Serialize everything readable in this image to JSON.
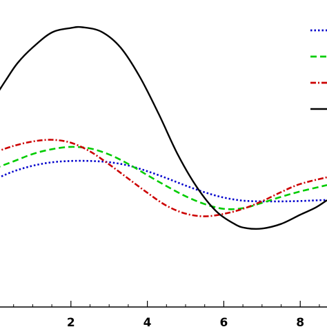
{
  "chart_data": {
    "type": "line",
    "title": "",
    "xlabel": "",
    "ylabel": "",
    "xlim": [
      0.0,
      8.7
    ],
    "ylim": [
      -1.0,
      1.0
    ],
    "xticks": [
      2,
      4,
      6,
      8
    ],
    "xtick_labels": [
      "2",
      "4",
      "6",
      "8"
    ],
    "grid": false,
    "legend": {
      "position": "top-right",
      "show_labels": false
    },
    "series": [
      {
        "color": "#0000cc",
        "dash": "dotted",
        "points": [
          [
            0.0,
            -0.212
          ],
          [
            0.5,
            -0.146
          ],
          [
            1.0,
            -0.1
          ],
          [
            1.5,
            -0.072
          ],
          [
            2.0,
            -0.061
          ],
          [
            2.5,
            -0.061
          ],
          [
            3.0,
            -0.071
          ],
          [
            3.5,
            -0.098
          ],
          [
            4.0,
            -0.145
          ],
          [
            4.5,
            -0.201
          ],
          [
            5.0,
            -0.262
          ],
          [
            5.5,
            -0.317
          ],
          [
            6.0,
            -0.36
          ],
          [
            6.5,
            -0.385
          ],
          [
            7.0,
            -0.391
          ],
          [
            7.5,
            -0.391
          ],
          [
            8.0,
            -0.388
          ],
          [
            8.7,
            -0.379
          ]
        ]
      },
      {
        "color": "#00cc00",
        "dash": "dashed",
        "points": [
          [
            0.0,
            -0.122
          ],
          [
            0.5,
            -0.064
          ],
          [
            1.0,
            -0.004
          ],
          [
            1.5,
            0.035
          ],
          [
            2.0,
            0.054
          ],
          [
            2.5,
            0.041
          ],
          [
            3.0,
            -0.008
          ],
          [
            3.5,
            -0.085
          ],
          [
            4.0,
            -0.177
          ],
          [
            4.5,
            -0.266
          ],
          [
            5.0,
            -0.349
          ],
          [
            5.5,
            -0.413
          ],
          [
            6.0,
            -0.452
          ],
          [
            6.5,
            -0.447
          ],
          [
            7.0,
            -0.403
          ],
          [
            7.5,
            -0.354
          ],
          [
            8.0,
            -0.31
          ],
          [
            8.7,
            -0.258
          ]
        ]
      },
      {
        "color": "#cc0000",
        "dash": "dashdot",
        "points": [
          [
            0.0,
            0.009
          ],
          [
            0.5,
            0.062
          ],
          [
            1.0,
            0.098
          ],
          [
            1.5,
            0.112
          ],
          [
            2.0,
            0.088
          ],
          [
            2.5,
            0.017
          ],
          [
            3.0,
            -0.089
          ],
          [
            3.5,
            -0.205
          ],
          [
            4.0,
            -0.321
          ],
          [
            4.5,
            -0.426
          ],
          [
            5.0,
            -0.491
          ],
          [
            5.5,
            -0.513
          ],
          [
            6.0,
            -0.493
          ],
          [
            6.5,
            -0.452
          ],
          [
            7.0,
            -0.39
          ],
          [
            7.5,
            -0.315
          ],
          [
            8.0,
            -0.249
          ],
          [
            8.7,
            -0.194
          ]
        ]
      },
      {
        "color": "#000000",
        "dash": "solid",
        "points": [
          [
            0.0,
            0.455
          ],
          [
            0.3,
            0.6
          ],
          [
            0.6,
            0.737
          ],
          [
            1.0,
            0.866
          ],
          [
            1.5,
            0.988
          ],
          [
            2.0,
            1.025
          ],
          [
            2.3,
            1.031
          ],
          [
            2.8,
            0.994
          ],
          [
            3.3,
            0.865
          ],
          [
            3.8,
            0.627
          ],
          [
            4.3,
            0.321
          ],
          [
            4.8,
            -0.011
          ],
          [
            5.3,
            -0.277
          ],
          [
            5.8,
            -0.471
          ],
          [
            6.3,
            -0.579
          ],
          [
            6.6,
            -0.61
          ],
          [
            7.0,
            -0.613
          ],
          [
            7.5,
            -0.575
          ],
          [
            8.0,
            -0.5
          ],
          [
            8.4,
            -0.442
          ],
          [
            8.7,
            -0.381
          ]
        ]
      }
    ]
  }
}
